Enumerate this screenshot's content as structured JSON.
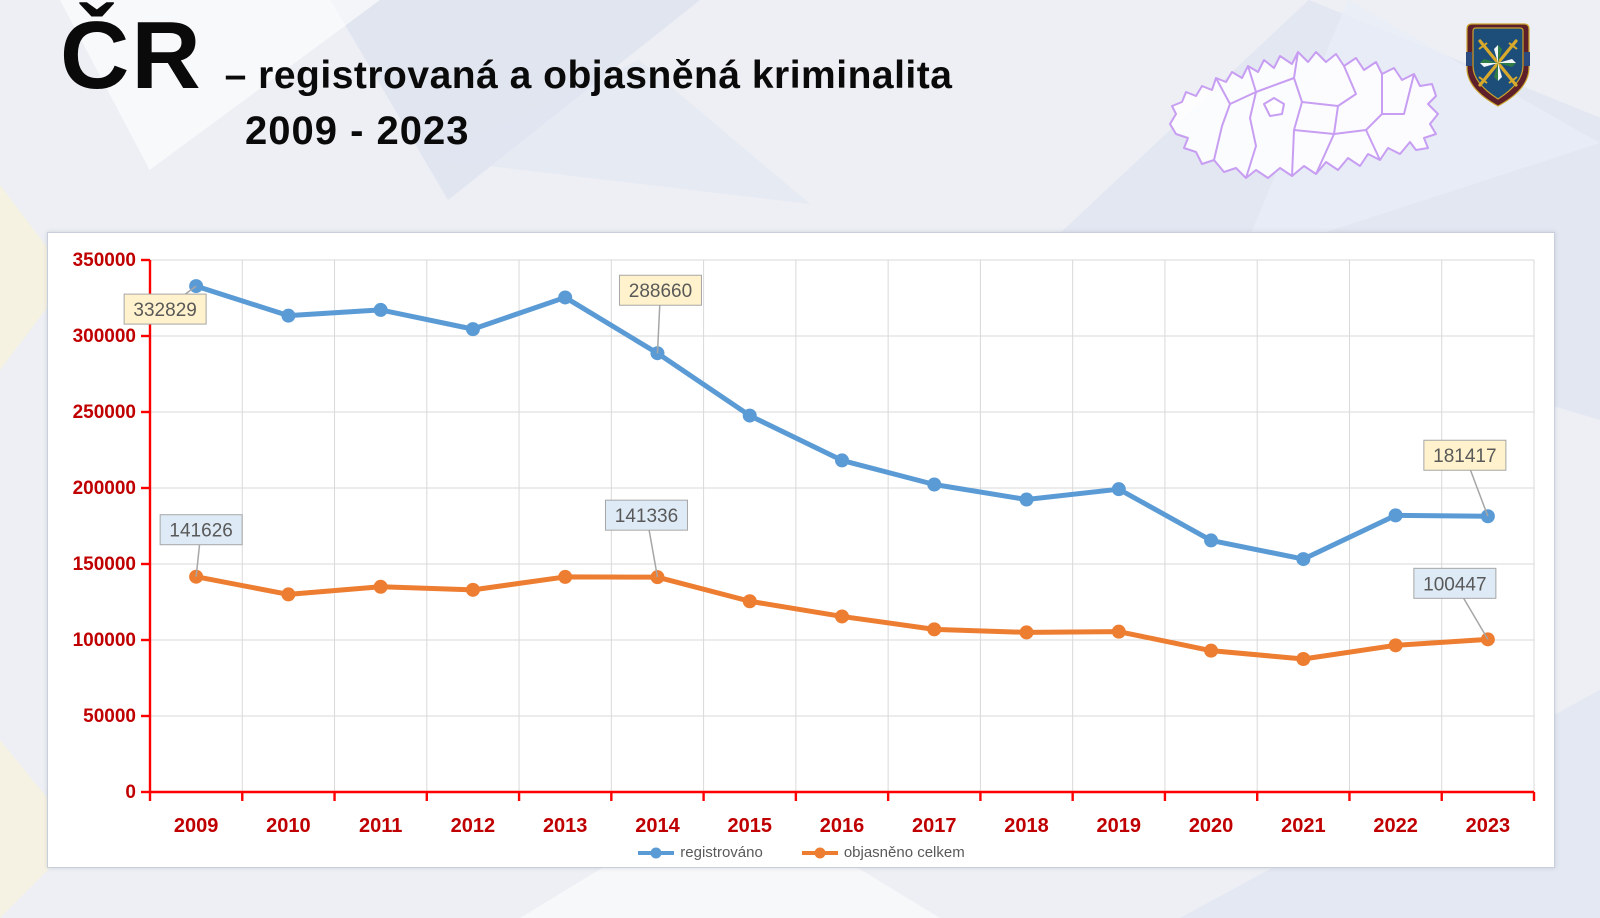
{
  "slide": {
    "title_main": "ČR",
    "title_rest": "– registrovaná a objasněná kriminalita",
    "title_years": "2009 - 2023"
  },
  "icons": {
    "map": "czech-republic-regions-map",
    "emblem": "police-shield-emblem"
  },
  "chart_data": {
    "type": "line",
    "title": "",
    "xlabel": "",
    "ylabel": "",
    "categories": [
      "2009",
      "2010",
      "2011",
      "2012",
      "2013",
      "2014",
      "2015",
      "2016",
      "2017",
      "2018",
      "2019",
      "2020",
      "2021",
      "2022",
      "2023"
    ],
    "series": [
      {
        "name": "registrováno",
        "color": "#5B9BD5",
        "values": [
          332829,
          313387,
          317177,
          304528,
          325366,
          288660,
          247628,
          218162,
          202303,
          192405,
          199221,
          165525,
          153233,
          181991,
          181417
        ]
      },
      {
        "name": "objasněno celkem",
        "color": "#ED7D31",
        "values": [
          141626,
          130000,
          135000,
          133000,
          141500,
          141336,
          125500,
          115500,
          107000,
          105000,
          105500,
          93000,
          87500,
          96500,
          100447
        ]
      }
    ],
    "ylim": [
      0,
      350000
    ],
    "ytick_step": 50000,
    "grid": true,
    "legend_position": "bottom",
    "axis_line_color": "#FF0000",
    "tick_label_color": "#C00000",
    "gridline_color": "#D9D9D9",
    "label_text_color": "#595959",
    "label_border_color": "#A6A6A6",
    "data_labels": [
      {
        "series": 0,
        "category": "2009",
        "text": "332829",
        "fill": "#FFF2CC"
      },
      {
        "series": 0,
        "category": "2014",
        "text": "288660",
        "fill": "#FFF2CC"
      },
      {
        "series": 0,
        "category": "2023",
        "text": "181417",
        "fill": "#FFF2CC"
      },
      {
        "series": 1,
        "category": "2009",
        "text": "141626",
        "fill": "#DEEBF7"
      },
      {
        "series": 1,
        "category": "2014",
        "text": "141336",
        "fill": "#DEEBF7"
      },
      {
        "series": 1,
        "category": "2023",
        "text": "100447",
        "fill": "#DEEBF7"
      }
    ]
  }
}
